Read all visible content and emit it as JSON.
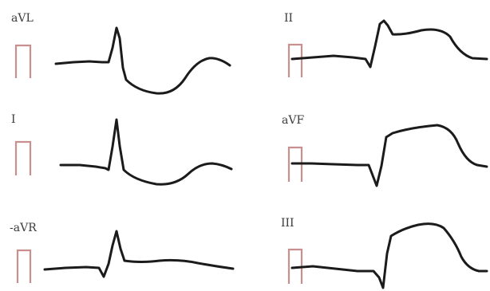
{
  "leads": [
    {
      "id": "avl",
      "label": "aVL"
    },
    {
      "id": "i",
      "label": "I"
    },
    {
      "id": "neg-avr",
      "label": "-aVR"
    },
    {
      "id": "ii",
      "label": "II"
    },
    {
      "id": "avf",
      "label": "aVF"
    },
    {
      "id": "iii",
      "label": "III"
    }
  ],
  "colors": {
    "trace": "#1b1b1b",
    "calibration_pulse": "#c98f8f",
    "label": "#3a3a3a",
    "background": "#ffffff"
  }
}
